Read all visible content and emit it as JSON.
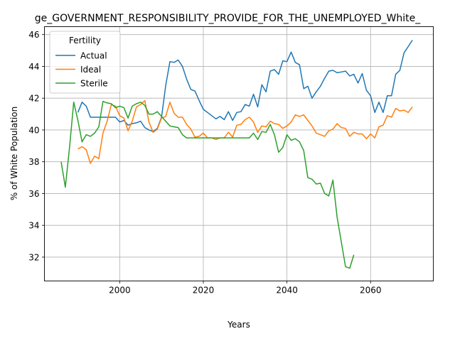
{
  "chart_data": {
    "type": "line",
    "title": "ge_GOVERNMENT_RESPONSIBILITY_PROVIDE_FOR_THE_UNEMPLOYED_White_",
    "xlabel": "Years",
    "ylabel": "% of White Population",
    "xlim": [
      1982,
      2075
    ],
    "ylim": [
      30.5,
      46.5
    ],
    "xticks": [
      2000,
      2020,
      2040,
      2060
    ],
    "yticks": [
      32,
      34,
      36,
      38,
      40,
      42,
      44,
      46
    ],
    "grid": true,
    "legend": {
      "title": "Fertility",
      "position": "top-left"
    },
    "series": [
      {
        "name": "Actual",
        "color": "#1f77b4",
        "x": [
          1990,
          1991,
          1992,
          1993,
          1994,
          1995,
          1996,
          1997,
          1998,
          1999,
          2000,
          2001,
          2002,
          2003,
          2004,
          2005,
          2006,
          2007,
          2008,
          2009,
          2010,
          2011,
          2012,
          2013,
          2014,
          2015,
          2016,
          2017,
          2018,
          2019,
          2020,
          2021,
          2022,
          2023,
          2024,
          2025,
          2026,
          2027,
          2028,
          2029,
          2030,
          2031,
          2032,
          2033,
          2034,
          2035,
          2036,
          2037,
          2038,
          2039,
          2040,
          2041,
          2042,
          2043,
          2044,
          2045,
          2046,
          2047,
          2048,
          2049,
          2050,
          2051,
          2052,
          2053,
          2054,
          2055,
          2056,
          2057,
          2058,
          2059,
          2060,
          2061,
          2062,
          2063,
          2064,
          2065,
          2066,
          2067,
          2068,
          2069,
          2070
        ],
        "values": [
          41.1,
          41.75,
          41.5,
          40.8,
          40.8,
          40.8,
          40.8,
          40.8,
          40.8,
          40.8,
          40.5,
          40.6,
          40.3,
          40.4,
          40.45,
          40.55,
          40.15,
          40.0,
          39.9,
          40.1,
          40.8,
          42.8,
          44.3,
          44.25,
          44.4,
          44.0,
          43.2,
          42.55,
          42.45,
          41.85,
          41.3,
          41.1,
          40.9,
          40.7,
          40.85,
          40.65,
          41.15,
          40.6,
          41.1,
          41.15,
          41.6,
          41.5,
          42.25,
          41.45,
          42.85,
          42.4,
          43.7,
          43.8,
          43.5,
          44.35,
          44.3,
          44.9,
          44.25,
          44.1,
          42.6,
          42.75,
          42.0,
          42.4,
          42.75,
          43.25,
          43.7,
          43.75,
          43.6,
          43.65,
          43.7,
          43.4,
          43.5,
          42.95,
          43.55,
          42.5,
          42.15,
          41.1,
          41.75,
          41.1,
          42.15,
          42.15,
          43.5,
          43.75,
          44.85,
          45.25,
          45.65
        ]
      },
      {
        "name": "Ideal",
        "color": "#ff7f0e",
        "x": [
          1990,
          1991,
          1992,
          1993,
          1994,
          1995,
          1996,
          1997,
          1998,
          1999,
          2000,
          2001,
          2002,
          2003,
          2004,
          2005,
          2006,
          2007,
          2008,
          2009,
          2010,
          2011,
          2012,
          2013,
          2014,
          2015,
          2016,
          2017,
          2018,
          2019,
          2020,
          2021,
          2022,
          2023,
          2024,
          2025,
          2026,
          2027,
          2028,
          2029,
          2030,
          2031,
          2032,
          2033,
          2034,
          2035,
          2036,
          2037,
          2038,
          2039,
          2040,
          2041,
          2042,
          2043,
          2044,
          2045,
          2046,
          2047,
          2048,
          2049,
          2050,
          2051,
          2052,
          2053,
          2054,
          2055,
          2056,
          2057,
          2058,
          2059,
          2060,
          2061,
          2062,
          2063,
          2064,
          2065,
          2066,
          2067,
          2068,
          2069,
          2070
        ],
        "values": [
          38.8,
          38.95,
          38.75,
          37.9,
          38.35,
          38.2,
          39.8,
          40.55,
          41.6,
          41.5,
          40.9,
          40.75,
          39.95,
          40.55,
          41.45,
          41.6,
          41.85,
          40.5,
          39.85,
          40.05,
          40.75,
          40.85,
          41.75,
          41.05,
          40.8,
          40.8,
          40.35,
          40.05,
          39.55,
          39.6,
          39.8,
          39.5,
          39.5,
          39.4,
          39.5,
          39.5,
          39.85,
          39.55,
          40.3,
          40.35,
          40.65,
          40.8,
          40.5,
          39.85,
          40.25,
          40.2,
          40.55,
          40.4,
          40.35,
          40.1,
          40.25,
          40.5,
          40.95,
          40.85,
          40.95,
          40.6,
          40.25,
          39.8,
          39.7,
          39.6,
          39.95,
          40.05,
          40.4,
          40.15,
          40.1,
          39.6,
          39.85,
          39.75,
          39.75,
          39.45,
          39.75,
          39.5,
          40.2,
          40.3,
          40.9,
          40.8,
          41.35,
          41.2,
          41.25,
          41.1,
          41.45
        ]
      },
      {
        "name": "Sterile",
        "color": "#2ca02c",
        "x": [
          1986,
          1987,
          1988,
          1989,
          1990,
          1991,
          1992,
          1993,
          1994,
          1995,
          1996,
          1997,
          1998,
          1999,
          2000,
          2001,
          2002,
          2003,
          2004,
          2005,
          2006,
          2007,
          2008,
          2009,
          2010,
          2011,
          2012,
          2013,
          2014,
          2015,
          2016,
          2017,
          2018,
          2019,
          2020,
          2021,
          2022,
          2023,
          2024,
          2025,
          2026,
          2027,
          2028,
          2029,
          2030,
          2031,
          2032,
          2033,
          2034,
          2035,
          2036,
          2037,
          2038,
          2039,
          2040,
          2041,
          2042,
          2043,
          2044,
          2045,
          2046,
          2047,
          2048,
          2049,
          2050,
          2051,
          2052,
          2053,
          2054,
          2055,
          2056
        ],
        "values": [
          38.0,
          36.4,
          38.9,
          41.75,
          40.6,
          39.25,
          39.7,
          39.6,
          39.8,
          40.2,
          41.8,
          41.7,
          41.65,
          41.4,
          41.5,
          41.4,
          40.75,
          41.5,
          41.65,
          41.75,
          41.55,
          41.0,
          41.0,
          41.15,
          40.85,
          40.55,
          40.25,
          40.2,
          40.15,
          39.7,
          39.5,
          39.5,
          39.5,
          39.5,
          39.5,
          39.5,
          39.5,
          39.5,
          39.5,
          39.5,
          39.5,
          39.5,
          39.5,
          39.5,
          39.5,
          39.5,
          39.8,
          39.4,
          39.9,
          39.85,
          40.35,
          39.7,
          38.6,
          38.9,
          39.7,
          39.35,
          39.45,
          39.25,
          38.7,
          37.0,
          36.9,
          36.6,
          36.65,
          36.0,
          35.85,
          36.85,
          34.5,
          32.95,
          31.4,
          31.3,
          32.15
        ]
      }
    ]
  }
}
